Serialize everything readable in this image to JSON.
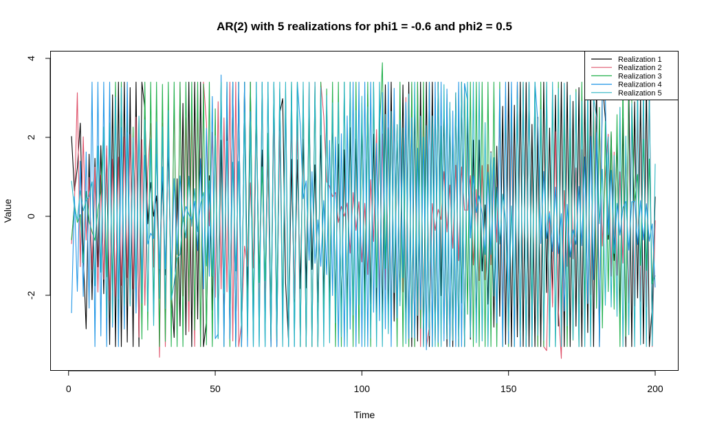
{
  "chart_data": {
    "type": "line",
    "title": "AR(2) with 5 realizations for phi1 = -0.6 and phi2 = 0.5",
    "xlabel": "Time",
    "ylabel": "Value",
    "xlim": [
      1,
      200
    ],
    "ylim": [
      -3.6,
      3.9
    ],
    "x_ticks": [
      0,
      50,
      100,
      150,
      200
    ],
    "y_ticks": [
      -2,
      0,
      2,
      4
    ],
    "grid": false,
    "legend_position": "top-right",
    "n_points": 200,
    "series": [
      {
        "name": "Realization 1",
        "color": "#000000",
        "key_values": [
          {
            "x": 1,
            "y": 2.03
          },
          {
            "x": 4,
            "y": 2.36
          },
          {
            "x": 6,
            "y": -2.85
          },
          {
            "x": 26,
            "y": 2.72
          },
          {
            "x": 36,
            "y": -3.07
          },
          {
            "x": 39,
            "y": 2.86
          },
          {
            "x": 47,
            "y": -2.66
          },
          {
            "x": 73,
            "y": 2.98
          },
          {
            "x": 75,
            "y": -3.16
          },
          {
            "x": 88,
            "y": 2.9
          },
          {
            "x": 112,
            "y": 2.32
          },
          {
            "x": 138,
            "y": 1.93
          },
          {
            "x": 167,
            "y": -2.78
          },
          {
            "x": 183,
            "y": 2.48
          },
          {
            "x": 199,
            "y": -2.26
          },
          {
            "x": 200,
            "y": 0.5
          }
        ]
      },
      {
        "name": "Realization 2",
        "color": "#df536b",
        "key_values": [
          {
            "x": 1,
            "y": -0.7
          },
          {
            "x": 3,
            "y": 3.13
          },
          {
            "x": 31,
            "y": -3.57
          },
          {
            "x": 28,
            "y": 2.35
          },
          {
            "x": 47,
            "y": 2.37
          },
          {
            "x": 59,
            "y": -2.7
          },
          {
            "x": 87,
            "y": 2.53
          },
          {
            "x": 115,
            "y": 3.01
          },
          {
            "x": 123,
            "y": -2.8
          },
          {
            "x": 147,
            "y": 2.52
          },
          {
            "x": 163,
            "y": -3.4
          },
          {
            "x": 168,
            "y": -3.6
          },
          {
            "x": 184,
            "y": 2.08
          },
          {
            "x": 200,
            "y": -0.1
          }
        ]
      },
      {
        "name": "Realization 3",
        "color": "#23b14d",
        "key_values": [
          {
            "x": 1,
            "y": -0.6
          },
          {
            "x": 12,
            "y": 2.26
          },
          {
            "x": 19,
            "y": -2.43
          },
          {
            "x": 74,
            "y": 3.2
          },
          {
            "x": 71,
            "y": -2.45
          },
          {
            "x": 107,
            "y": 3.89
          },
          {
            "x": 105,
            "y": -1.8
          },
          {
            "x": 131,
            "y": 2.2
          },
          {
            "x": 168,
            "y": -2.77
          },
          {
            "x": 182,
            "y": -2.83
          },
          {
            "x": 192,
            "y": 2.95
          },
          {
            "x": 200,
            "y": -1.5
          }
        ]
      },
      {
        "name": "Realization 4",
        "color": "#2297e6",
        "key_values": [
          {
            "x": 1,
            "y": -2.45
          },
          {
            "x": 16,
            "y": 3.02
          },
          {
            "x": 51,
            "y": -2.98
          },
          {
            "x": 52,
            "y": 3.58
          },
          {
            "x": 79,
            "y": 2.3
          },
          {
            "x": 122,
            "y": -3.38
          },
          {
            "x": 136,
            "y": 2.93
          },
          {
            "x": 146,
            "y": -2.7
          },
          {
            "x": 160,
            "y": 2.4
          },
          {
            "x": 169,
            "y": -2.4
          },
          {
            "x": 183,
            "y": 3.02
          },
          {
            "x": 200,
            "y": -1.8
          }
        ]
      },
      {
        "name": "Realization 5",
        "color": "#28b4c2",
        "key_values": [
          {
            "x": 1,
            "y": 0.9
          },
          {
            "x": 16,
            "y": 3.0
          },
          {
            "x": 36,
            "y": -1.7
          },
          {
            "x": 62,
            "y": 2.4
          },
          {
            "x": 97,
            "y": -2.5
          },
          {
            "x": 122,
            "y": 2.3
          },
          {
            "x": 150,
            "y": -2.9
          },
          {
            "x": 180,
            "y": 2.5
          },
          {
            "x": 200,
            "y": 1.33
          }
        ]
      }
    ]
  }
}
